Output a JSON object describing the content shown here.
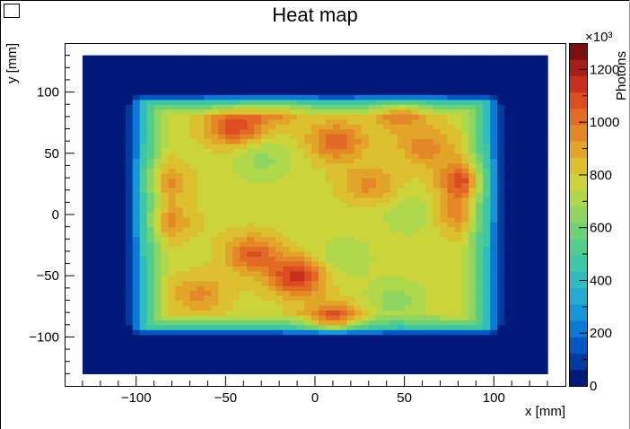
{
  "chart_data": {
    "type": "heatmap",
    "title": "Heat map",
    "xlabel": "x [mm]",
    "ylabel": "y [mm]",
    "zlabel": "Photons",
    "z_exponent_label": "×10³",
    "xlim": [
      -140,
      140
    ],
    "ylim": [
      -140,
      140
    ],
    "zlim": [
      0,
      1300
    ],
    "x_ticks": [
      -100,
      -50,
      0,
      50,
      100
    ],
    "x_tick_labels": [
      "−100",
      "−50",
      "0",
      "50",
      "100"
    ],
    "y_ticks": [
      -100,
      -50,
      0,
      50,
      100
    ],
    "y_tick_labels": [
      "−100",
      "−50",
      "0",
      "50",
      "100"
    ],
    "z_ticks": [
      0,
      200,
      400,
      600,
      800,
      1000,
      1200
    ],
    "z_tick_labels": [
      "0",
      "200",
      "400",
      "600",
      "800",
      "1000",
      "1200"
    ],
    "grid": false,
    "colorbar": "right",
    "palette": [
      "#00197a",
      "#003b9e",
      "#0058c4",
      "#0a7ad6",
      "#1497d8",
      "#22acd2",
      "#2fbcc0",
      "#3dc7a7",
      "#52cd8d",
      "#6fd176",
      "#8fd561",
      "#b0d84c",
      "#ccd43c",
      "#ddc030",
      "#e2a52a",
      "#e48726",
      "#e26a24",
      "#dc4b22",
      "#c8301d",
      "#a51f17",
      "#7c1010"
    ],
    "hotspots": [
      {
        "x": -45,
        "y": 72,
        "photons": 1100
      },
      {
        "x": -22,
        "y": 88,
        "photons": 960
      },
      {
        "x": 12,
        "y": 60,
        "photons": 1050
      },
      {
        "x": 48,
        "y": 85,
        "photons": 1000
      },
      {
        "x": 62,
        "y": 55,
        "photons": 960
      },
      {
        "x": 85,
        "y": 28,
        "photons": 1120
      },
      {
        "x": 80,
        "y": 0,
        "photons": 960
      },
      {
        "x": 30,
        "y": 25,
        "photons": 950
      },
      {
        "x": -88,
        "y": 28,
        "photons": 980
      },
      {
        "x": -85,
        "y": -5,
        "photons": 960
      },
      {
        "x": -35,
        "y": -32,
        "photons": 1050
      },
      {
        "x": -10,
        "y": -50,
        "photons": 1150
      },
      {
        "x": 10,
        "y": -90,
        "photons": 1230
      },
      {
        "x": -65,
        "y": -65,
        "photons": 950
      }
    ],
    "cool_spots": [
      {
        "x": 55,
        "y": 0,
        "photons": 680
      },
      {
        "x": -30,
        "y": 45,
        "photons": 660
      },
      {
        "x": 45,
        "y": -70,
        "photons": 650
      },
      {
        "x": 15,
        "y": -35,
        "photons": 680
      }
    ]
  }
}
